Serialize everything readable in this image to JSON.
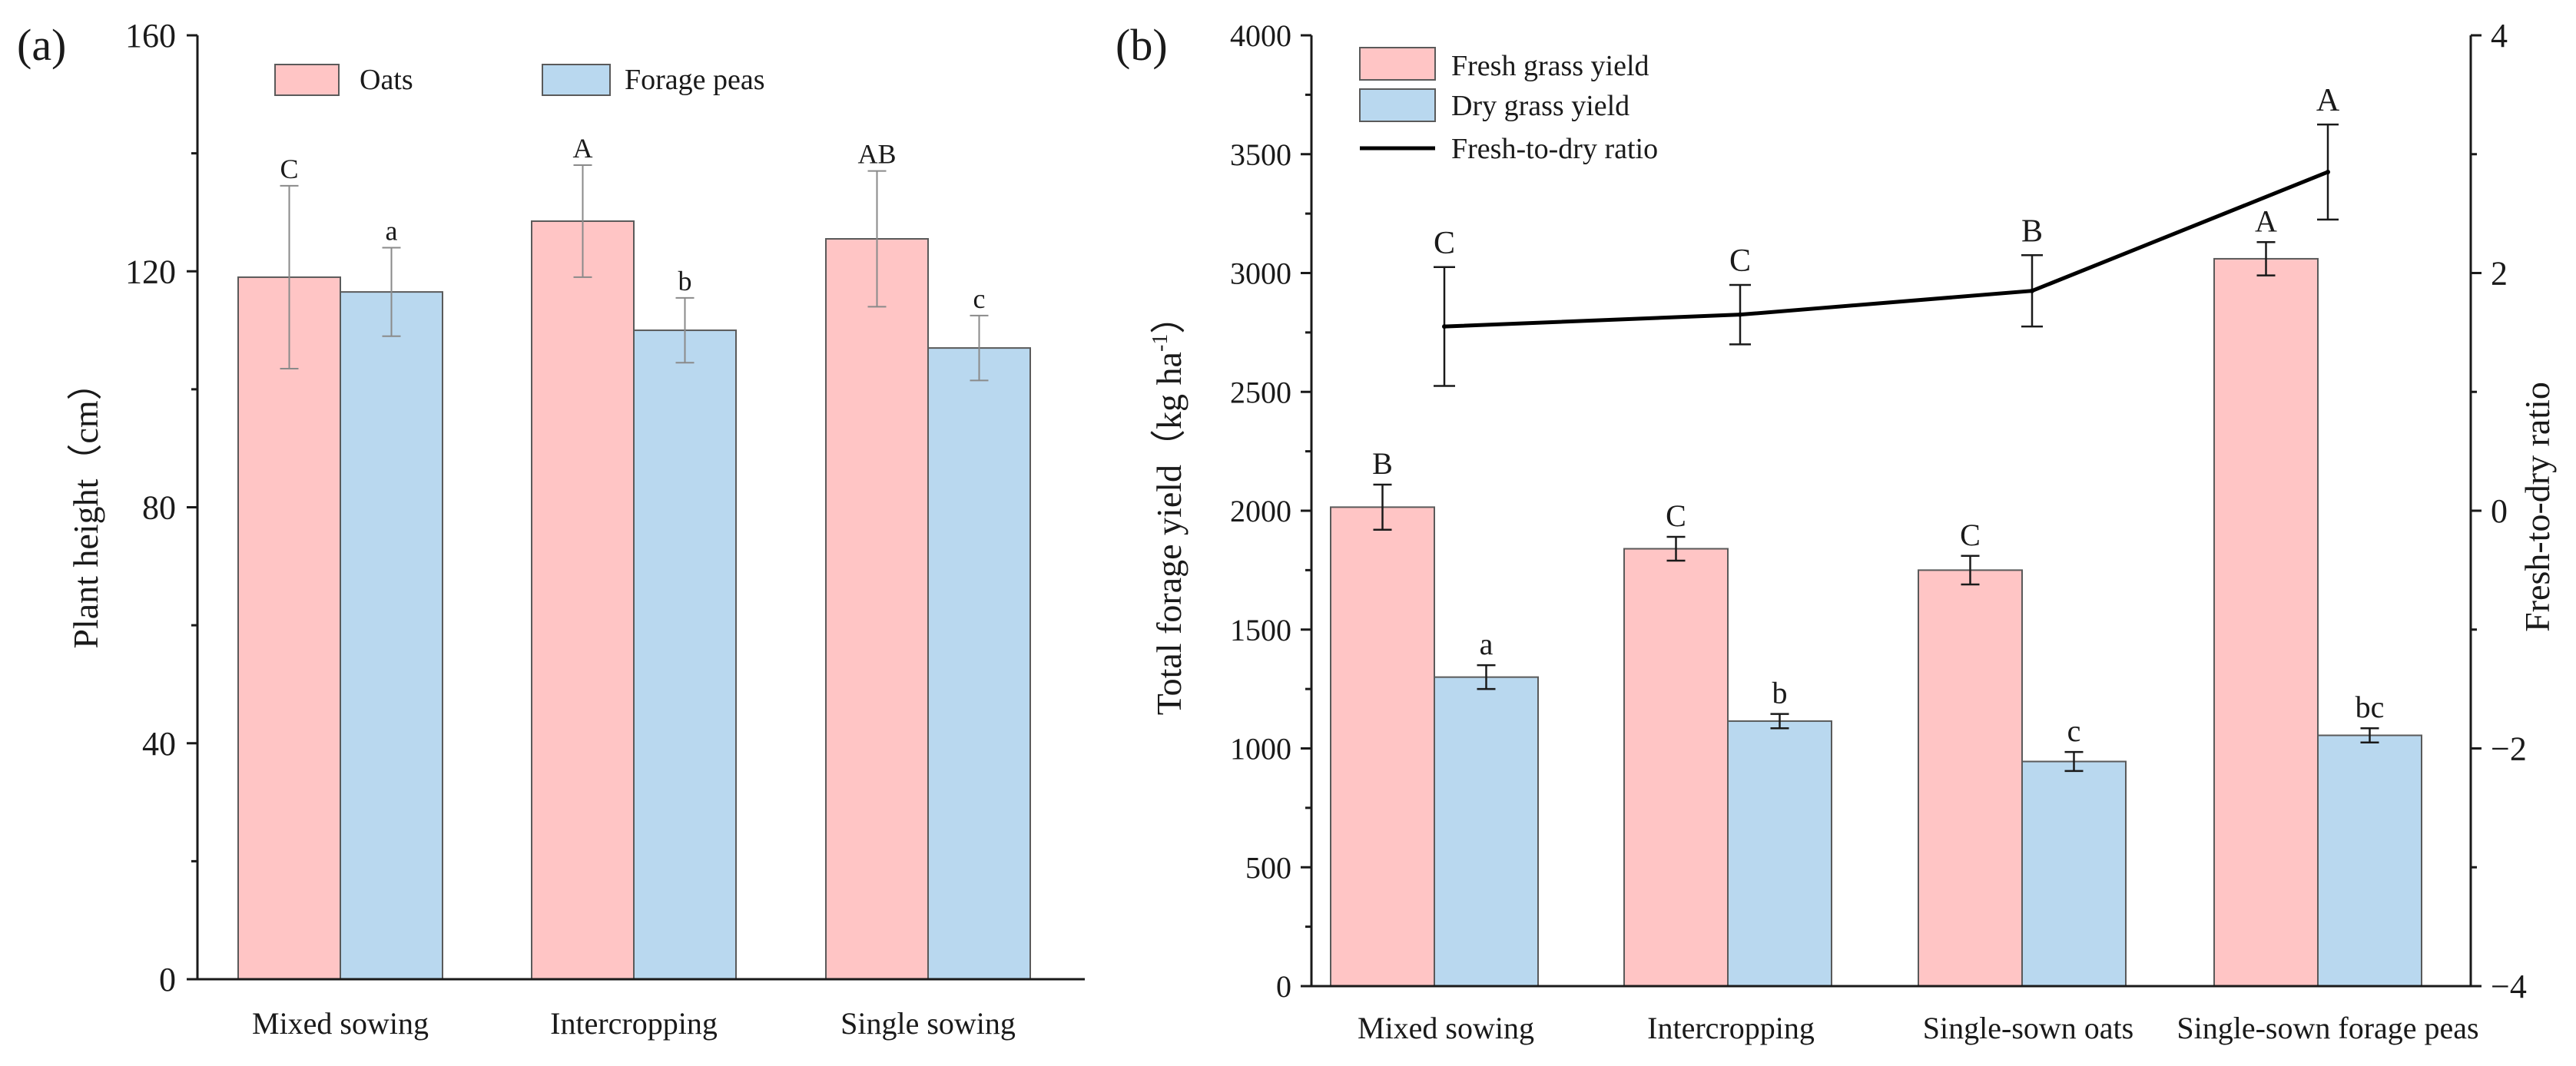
{
  "chart_data": [
    {
      "panel_label": "(a)",
      "type": "bar",
      "ylabel": "Plant height（cm）",
      "ylim": [
        0,
        160
      ],
      "yticks": [
        0,
        40,
        80,
        120,
        160
      ],
      "yticks_labels": [
        "0",
        "40",
        "80",
        "120",
        "160"
      ],
      "categories": [
        "Mixed sowing",
        "Intercropping",
        "Single sowing"
      ],
      "series": [
        {
          "name": "Oats",
          "color": "#ffc5c5",
          "values": [
            119,
            128.5,
            125.5
          ],
          "errors": [
            15.5,
            9.5,
            11.5
          ],
          "letters": [
            "C",
            "A",
            "AB"
          ]
        },
        {
          "name": "Forage peas",
          "color": "#b9d8ef",
          "values": [
            116.5,
            110,
            107
          ],
          "errors": [
            7.5,
            5.5,
            5.5
          ],
          "letters": [
            "a",
            "b",
            "c"
          ]
        }
      ],
      "legend_position": "top"
    },
    {
      "panel_label": "(b)",
      "type": "bar",
      "ylabel_prefix": "Total forage yield（kg ha",
      "ylabel_sup": "-1",
      "ylabel_suffix": "）",
      "y2label": "Fresh-to-dry ratio",
      "ylim": [
        0,
        4000
      ],
      "yticks": [
        0,
        500,
        1000,
        1500,
        2000,
        2500,
        3000,
        3500,
        4000
      ],
      "yticks_labels": [
        "0",
        "500",
        "1000",
        "1500",
        "2000",
        "2500",
        "3000",
        "3500",
        "4000"
      ],
      "y2lim": [
        -4,
        4
      ],
      "y2ticks": [
        -4,
        -2,
        0,
        2,
        4
      ],
      "y2ticks_labels": [
        "−4",
        "−2",
        "0",
        "2",
        "4"
      ],
      "categories": [
        "Mixed sowing",
        "Intercropping",
        "Single-sown oats",
        "Single-sown forage peas"
      ],
      "series": [
        {
          "name": "Fresh grass yield",
          "color": "#ffc5c5",
          "values": [
            2015,
            1840,
            1750,
            3060
          ],
          "errors": [
            95,
            50,
            60,
            70
          ],
          "letters": [
            "B",
            "C",
            "C",
            "A"
          ]
        },
        {
          "name": "Dry grass yield",
          "color": "#b9d8ef",
          "values": [
            1300,
            1115,
            945,
            1055
          ],
          "errors": [
            50,
            30,
            40,
            30
          ],
          "letters": [
            "a",
            "b",
            "c",
            "bc"
          ]
        }
      ],
      "line_series": {
        "name": "Fresh-to-dry ratio",
        "axis": "right",
        "color": "#000000",
        "values": [
          1.55,
          1.65,
          1.85,
          2.85
        ],
        "errors": [
          0.5,
          0.25,
          0.3,
          0.4
        ],
        "letters": [
          "C",
          "C",
          "B",
          "A"
        ]
      },
      "legend_position": "top-left"
    }
  ]
}
